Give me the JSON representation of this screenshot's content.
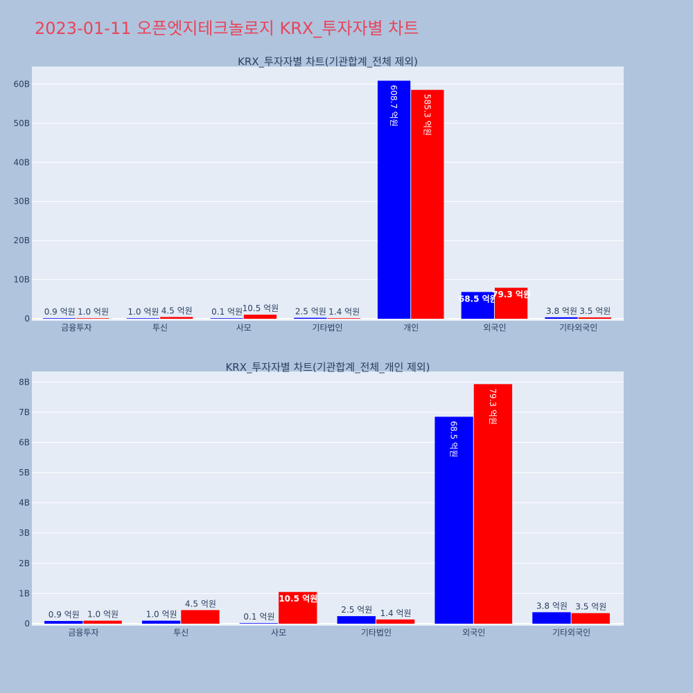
{
  "page": {
    "title": "2023-01-11 오픈엣지테크놀로지 KRX_투자자별 차트"
  },
  "colors": {
    "buy": "#0000ff",
    "sell": "#ff0000",
    "title": "#e8445a",
    "plot_bg": "#e5ecf6",
    "paper_bg": "#b0c4de"
  },
  "chart_data": [
    {
      "type": "bar",
      "title": "KRX_투자자별 차트(기관합계_전체 제외)",
      "categories": [
        "금융투자",
        "투신",
        "사모",
        "기타법인",
        "개인",
        "외국인",
        "기타외국인"
      ],
      "series": [
        {
          "color": "#0000ff",
          "values": [
            0.09,
            0.1,
            0.01,
            0.25,
            60.87,
            6.85,
            0.38
          ],
          "labels": [
            "0.9 억원",
            "1.0 억원",
            "0.1 억원",
            "2.5 억원",
            "608.7 억원",
            "68.5 억원",
            "3.8 억원"
          ]
        },
        {
          "color": "#ff0000",
          "values": [
            0.1,
            0.45,
            1.05,
            0.14,
            58.53,
            7.93,
            0.35
          ],
          "labels": [
            "1.0 억원",
            "4.5 억원",
            "10.5 억원",
            "1.4 억원",
            "585.3 억원",
            "79.3 억원",
            "3.5 억원"
          ]
        }
      ],
      "yticks": [
        "0",
        "10B",
        "20B",
        "30B",
        "40B",
        "50B",
        "60B"
      ],
      "ylim": [
        0,
        64.5
      ],
      "yunit": "B"
    },
    {
      "type": "bar",
      "title": "KRX_투자자별 차트(기관합계_전체_개인 제외)",
      "categories": [
        "금융투자",
        "투신",
        "사모",
        "기타법인",
        "외국인",
        "기타외국인"
      ],
      "series": [
        {
          "color": "#0000ff",
          "values": [
            0.09,
            0.1,
            0.01,
            0.25,
            6.85,
            0.38
          ],
          "labels": [
            "0.9 억원",
            "1.0 억원",
            "0.1 억원",
            "2.5 억원",
            "68.5 억원",
            "3.8 억원"
          ]
        },
        {
          "color": "#ff0000",
          "values": [
            0.1,
            0.45,
            1.05,
            0.14,
            7.93,
            0.35
          ],
          "labels": [
            "1.0 억원",
            "4.5 억원",
            "10.5 억원",
            "1.4 억원",
            "79.3 억원",
            "3.5 억원"
          ]
        }
      ],
      "yticks": [
        "0",
        "1B",
        "2B",
        "3B",
        "4B",
        "5B",
        "6B",
        "7B",
        "8B"
      ],
      "ylim": [
        0,
        8.35
      ],
      "yunit": "B"
    }
  ]
}
